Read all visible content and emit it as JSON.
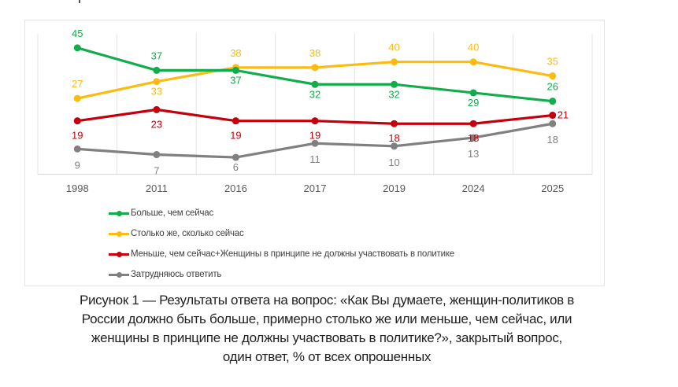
{
  "chart_data": {
    "type": "line",
    "categories": [
      "1998",
      "2011",
      "2016",
      "2017",
      "2019",
      "2024",
      "2025"
    ],
    "ylim": [
      0,
      50
    ],
    "grid": "vertical",
    "legend_position": "bottom",
    "series": [
      {
        "name": "Больше, чем сейчас",
        "color": "#12ad4b",
        "values": [
          45,
          37,
          37,
          32,
          32,
          29,
          26
        ],
        "labels": [
          "45",
          "37",
          "37",
          "32",
          "32",
          "29",
          "26"
        ]
      },
      {
        "name": "Столько же, сколько сейчас",
        "color": "#fbbb10",
        "values": [
          27,
          33,
          38,
          38,
          40,
          40,
          35
        ],
        "labels": [
          "27",
          "33",
          "38",
          "38",
          "40",
          "40",
          "35"
        ]
      },
      {
        "name": "Меньше, чем сейчас+Женщины в принципе не должны участвовать в политике",
        "color": "#c3000b",
        "values": [
          19,
          23,
          19,
          19,
          18,
          18,
          21
        ],
        "labels": [
          "19",
          "23",
          "19",
          "19",
          "18",
          "18",
          "21"
        ]
      },
      {
        "name": "Затрудняюсь ответить",
        "color": "#808080",
        "values": [
          9,
          7,
          6,
          11,
          10,
          13,
          18
        ],
        "labels": [
          "9",
          "7",
          "6",
          "11",
          "10",
          "13",
          "18"
        ]
      }
    ]
  },
  "caption": {
    "lines": [
      "Рисунок 1 — Результаты ответа на вопрос: «Как Вы думаете, женщин-политиков в",
      "России должно быть больше, примерно столько же или меньше, чем сейчас, или",
      "женщины в принципе не должны участвовать в политике?», закрытый вопрос,",
      "один ответ, % от всех опрошенных"
    ]
  }
}
